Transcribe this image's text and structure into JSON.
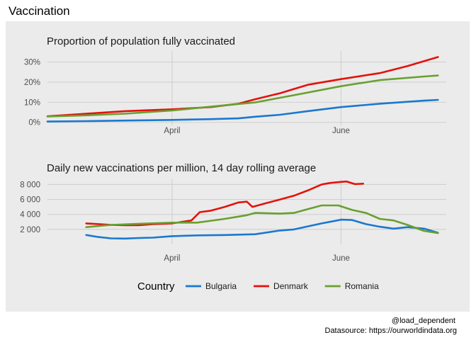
{
  "title": "Vaccination",
  "credits": {
    "author": "@load_dependent",
    "source": "Datasource: https://ourworldindata.org"
  },
  "legend": {
    "title": "Country",
    "placement": "bottom"
  },
  "colors": {
    "Bulgaria": "#1a78cf",
    "Denmark": "#e3120b",
    "Romania": "#69a030",
    "panel_background": "#ebebeb",
    "grid": "#d0d0d0"
  },
  "chart_data": [
    {
      "type": "line",
      "title": "Proportion of population fully vaccinated",
      "xlabel": "",
      "ylabel": "",
      "x_ticks": [
        {
          "date": "2021-04-01",
          "label": "April"
        },
        {
          "date": "2021-06-01",
          "label": "June"
        }
      ],
      "xlim": [
        "2021-02-15",
        "2021-07-09"
      ],
      "y_ticks": [
        {
          "value": 0,
          "label": "0%"
        },
        {
          "value": 10,
          "label": "10%"
        },
        {
          "value": 20,
          "label": "20%"
        },
        {
          "value": 30,
          "label": "30%"
        }
      ],
      "ylim": [
        -1.5,
        35.5
      ],
      "grid": true,
      "series": [
        {
          "name": "Bulgaria",
          "points": [
            [
              "2021-02-15",
              0.4
            ],
            [
              "2021-03-01",
              0.6
            ],
            [
              "2021-03-15",
              0.9
            ],
            [
              "2021-04-01",
              1.2
            ],
            [
              "2021-04-15",
              1.6
            ],
            [
              "2021-04-25",
              2.0
            ],
            [
              "2021-05-01",
              2.8
            ],
            [
              "2021-05-10",
              3.8
            ],
            [
              "2021-05-20",
              5.6
            ],
            [
              "2021-06-01",
              7.6
            ],
            [
              "2021-06-15",
              9.3
            ],
            [
              "2021-07-01",
              10.8
            ],
            [
              "2021-07-06",
              11.2
            ]
          ]
        },
        {
          "name": "Denmark",
          "points": [
            [
              "2021-02-15",
              3.0
            ],
            [
              "2021-03-01",
              4.3
            ],
            [
              "2021-03-15",
              5.6
            ],
            [
              "2021-04-01",
              6.5
            ],
            [
              "2021-04-15",
              7.6
            ],
            [
              "2021-04-25",
              9.3
            ],
            [
              "2021-05-01",
              11.5
            ],
            [
              "2021-05-10",
              14.5
            ],
            [
              "2021-05-20",
              18.7
            ],
            [
              "2021-06-01",
              21.5
            ],
            [
              "2021-06-15",
              24.5
            ],
            [
              "2021-06-25",
              28.0
            ],
            [
              "2021-07-06",
              32.5
            ]
          ]
        },
        {
          "name": "Romania",
          "points": [
            [
              "2021-02-15",
              2.9
            ],
            [
              "2021-03-01",
              3.5
            ],
            [
              "2021-03-15",
              4.3
            ],
            [
              "2021-04-01",
              5.9
            ],
            [
              "2021-04-15",
              7.8
            ],
            [
              "2021-05-01",
              9.9
            ],
            [
              "2021-05-15",
              13.5
            ],
            [
              "2021-06-01",
              18.0
            ],
            [
              "2021-06-15",
              21.0
            ],
            [
              "2021-07-01",
              22.8
            ],
            [
              "2021-07-06",
              23.3
            ]
          ]
        }
      ]
    },
    {
      "type": "line",
      "title": "Daily new vaccinations per million, 14 day rolling average",
      "xlabel": "",
      "ylabel": "",
      "x_ticks": [
        {
          "date": "2021-04-01",
          "label": "April"
        },
        {
          "date": "2021-06-01",
          "label": "June"
        }
      ],
      "xlim": [
        "2021-02-15",
        "2021-07-09"
      ],
      "y_ticks": [
        {
          "value": 2000,
          "label": "2 000"
        },
        {
          "value": 4000,
          "label": "4 000"
        },
        {
          "value": 6000,
          "label": "6 000"
        },
        {
          "value": 8000,
          "label": "8 000"
        }
      ],
      "ylim": [
        0,
        8700
      ],
      "grid": true,
      "series": [
        {
          "name": "Bulgaria",
          "points": [
            [
              "2021-03-01",
              1250
            ],
            [
              "2021-03-05",
              1000
            ],
            [
              "2021-03-10",
              800
            ],
            [
              "2021-03-15",
              780
            ],
            [
              "2021-03-20",
              850
            ],
            [
              "2021-03-25",
              900
            ],
            [
              "2021-04-01",
              1100
            ],
            [
              "2021-04-10",
              1200
            ],
            [
              "2021-04-20",
              1250
            ],
            [
              "2021-05-01",
              1350
            ],
            [
              "2021-05-10",
              1850
            ],
            [
              "2021-05-15",
              2000
            ],
            [
              "2021-05-20",
              2400
            ],
            [
              "2021-05-25",
              2800
            ],
            [
              "2021-05-30",
              3150
            ],
            [
              "2021-06-01",
              3300
            ],
            [
              "2021-06-05",
              3250
            ],
            [
              "2021-06-10",
              2700
            ],
            [
              "2021-06-15",
              2350
            ],
            [
              "2021-06-20",
              2100
            ],
            [
              "2021-06-25",
              2300
            ],
            [
              "2021-07-01",
              2100
            ],
            [
              "2021-07-06",
              1550
            ]
          ]
        },
        {
          "name": "Denmark",
          "points": [
            [
              "2021-03-01",
              2800
            ],
            [
              "2021-03-10",
              2600
            ],
            [
              "2021-03-15",
              2550
            ],
            [
              "2021-03-20",
              2550
            ],
            [
              "2021-03-25",
              2700
            ],
            [
              "2021-04-01",
              2800
            ],
            [
              "2021-04-08",
              3200
            ],
            [
              "2021-04-11",
              4300
            ],
            [
              "2021-04-15",
              4500
            ],
            [
              "2021-04-20",
              5000
            ],
            [
              "2021-04-25",
              5600
            ],
            [
              "2021-04-28",
              5700
            ],
            [
              "2021-04-30",
              5000
            ],
            [
              "2021-05-05",
              5500
            ],
            [
              "2021-05-10",
              6000
            ],
            [
              "2021-05-15",
              6500
            ],
            [
              "2021-05-20",
              7200
            ],
            [
              "2021-05-25",
              8000
            ],
            [
              "2021-05-28",
              8200
            ],
            [
              "2021-05-31",
              8300
            ],
            [
              "2021-06-03",
              8400
            ],
            [
              "2021-06-06",
              8050
            ],
            [
              "2021-06-09",
              8100
            ]
          ]
        },
        {
          "name": "Romania",
          "points": [
            [
              "2021-03-01",
              2300
            ],
            [
              "2021-03-10",
              2600
            ],
            [
              "2021-03-20",
              2750
            ],
            [
              "2021-04-01",
              2900
            ],
            [
              "2021-04-10",
              2900
            ],
            [
              "2021-04-20",
              3400
            ],
            [
              "2021-04-28",
              3900
            ],
            [
              "2021-05-01",
              4200
            ],
            [
              "2021-05-10",
              4100
            ],
            [
              "2021-05-15",
              4200
            ],
            [
              "2021-05-20",
              4700
            ],
            [
              "2021-05-25",
              5200
            ],
            [
              "2021-05-31",
              5200
            ],
            [
              "2021-06-05",
              4600
            ],
            [
              "2021-06-10",
              4200
            ],
            [
              "2021-06-15",
              3400
            ],
            [
              "2021-06-20",
              3200
            ],
            [
              "2021-06-25",
              2600
            ],
            [
              "2021-07-01",
              1800
            ],
            [
              "2021-07-06",
              1500
            ]
          ]
        }
      ]
    }
  ]
}
